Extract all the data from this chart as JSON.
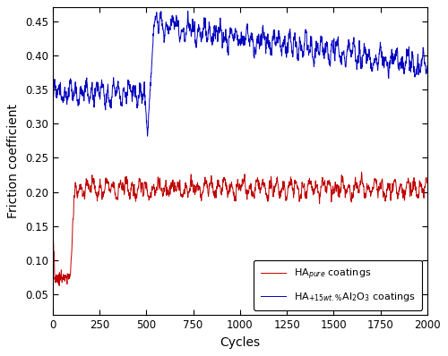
{
  "title": "",
  "xlabel": "Cycles",
  "ylabel": "Friction coefficient",
  "xlim": [
    0,
    2000
  ],
  "ylim": [
    0.02,
    0.47
  ],
  "xticks": [
    0,
    250,
    500,
    750,
    1000,
    1250,
    1500,
    1750,
    2000
  ],
  "yticks": [
    0.05,
    0.1,
    0.15,
    0.2,
    0.25,
    0.3,
    0.35,
    0.4,
    0.45
  ],
  "red_color": "#c00000",
  "blue_color": "#0000c0",
  "legend_label_red": "HA$_{pure}$ coatings",
  "legend_label_blue": "HA$_{+15wt.\\%}$Al$_2$O$_3$ coatings",
  "background_color": "#ffffff",
  "linewidth": 0.7,
  "seed": 42
}
